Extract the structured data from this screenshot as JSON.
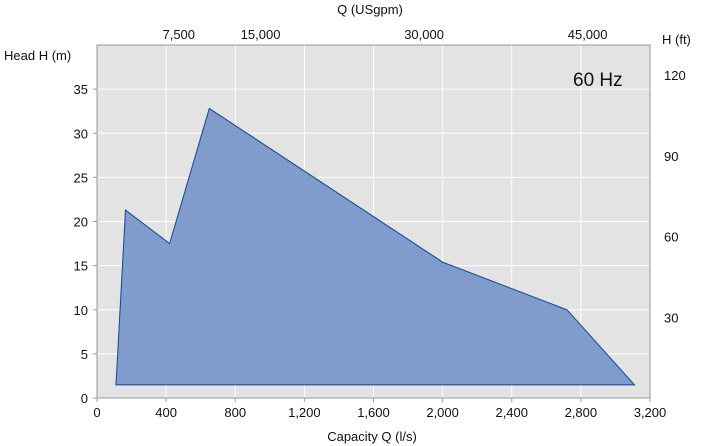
{
  "chart_data": {
    "type": "area",
    "title": "",
    "annotation": "60 Hz",
    "xlabel": "Capacity Q (l/s)",
    "ylabel": "Head H (m)",
    "x2label": "Q (USgpm)",
    "y2label": "H (ft)",
    "xlim": [
      0,
      3200
    ],
    "ylim": [
      0,
      40
    ],
    "x_ticks": [
      0,
      400,
      800,
      1200,
      1600,
      2000,
      2400,
      2800,
      3200
    ],
    "x_tick_labels": [
      "0",
      "400",
      "800",
      "1,200",
      "1,600",
      "2,000",
      "2,400",
      "2,800",
      "3,200"
    ],
    "y_ticks": [
      0,
      5,
      10,
      15,
      20,
      25,
      30,
      35
    ],
    "y_tick_labels": [
      "0",
      "5",
      "10",
      "15",
      "20",
      "25",
      "30",
      "35"
    ],
    "x2_ticks_usgpm": [
      7500,
      15000,
      30000,
      45000
    ],
    "x2_tick_labels": [
      "7,500",
      "15,000",
      "30,000",
      "45,000"
    ],
    "y2_ticks_ft": [
      30,
      60,
      90,
      120
    ],
    "y2_tick_labels": [
      "30",
      "60",
      "90",
      "120"
    ],
    "grid": true,
    "colors": {
      "fill": "#7f9ccc",
      "stroke": "#1f4f96",
      "plot_bg": "#e3e3e3",
      "grid": "#ffffff",
      "frame": "#9a9a9a"
    },
    "area_outline": {
      "x": [
        110,
        165,
        420,
        650,
        2000,
        2720,
        3110,
        110
      ],
      "y": [
        1.5,
        21.3,
        17.5,
        32.8,
        15.4,
        10,
        1.5,
        1.5
      ]
    }
  }
}
